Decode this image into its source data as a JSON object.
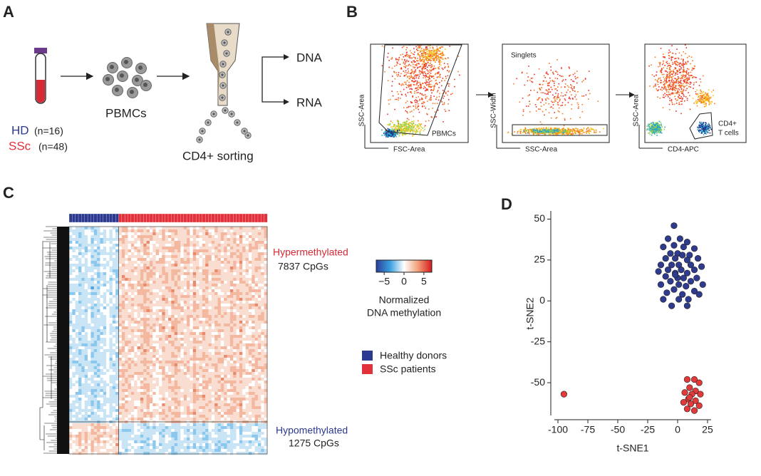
{
  "panels": {
    "A": {
      "label": "A",
      "hd": "HD",
      "hd_n": "(n=16)",
      "ssc": "SSc",
      "ssc_n": "(n=48)",
      "cells": "PBMCs",
      "sorting": "CD4+ sorting",
      "dna": "DNA",
      "rna": "RNA"
    },
    "B": {
      "label": "B",
      "plots": [
        {
          "ylabel": "SSC-Area",
          "xlabel": "FSC-Area",
          "gate": "PBMCs"
        },
        {
          "ylabel": "SSC-Width",
          "xlabel": "SSC-Area",
          "gate": "Singlets"
        },
        {
          "ylabel": "SSC-Area",
          "xlabel": "CD4-APC",
          "gate_lines": [
            "CD4+",
            "T cells"
          ]
        }
      ]
    },
    "C": {
      "label": "C",
      "hyper": "Hypermethylated",
      "hyper_n": "7837 CpGs",
      "hypo": "Hypomethylated",
      "hypo_n": "1275 CpGs",
      "colorbar": {
        "ticks": [
          {
            "value": -5,
            "label": "−5"
          },
          0,
          5
        ],
        "lim": [
          -7,
          7
        ],
        "title_lines": [
          "Normalized",
          "DNA methylation"
        ]
      },
      "legend": [
        {
          "name": "Healthy donors",
          "color": "#2b3990"
        },
        {
          "name": "SSc patients",
          "color": "#e2313a"
        }
      ]
    },
    "D": {
      "label": "D"
    }
  },
  "chart_data": {
    "type": "scatter",
    "xlabel": "t-SNE1",
    "ylabel": "t-SNE2",
    "xlim": [
      -103,
      28
    ],
    "ylim": [
      -70,
      55
    ],
    "xticks": [
      -100,
      -75,
      -50,
      -25,
      0,
      25
    ],
    "yticks": [
      -50,
      -25,
      0,
      25,
      50
    ],
    "series": [
      {
        "color": "#2e3b8e",
        "x": [
          -3,
          -8,
          2,
          8,
          -12,
          -3,
          5,
          14,
          -6,
          0,
          4,
          10,
          -10,
          -2,
          8,
          17,
          -14,
          -5,
          1,
          11,
          20,
          -8,
          3,
          14,
          -16,
          -2,
          8,
          -10,
          0,
          5,
          16,
          -6,
          11,
          21,
          -14,
          1,
          7,
          -3,
          14,
          -9,
          4,
          18,
          -12,
          1,
          9,
          -5,
          8,
          -2
        ],
        "values": [
          46,
          38,
          38,
          36,
          33,
          34,
          33,
          32,
          29,
          29,
          28,
          28,
          26,
          26,
          25,
          26,
          22,
          22,
          22,
          22,
          21,
          19,
          19,
          19,
          18,
          17,
          17,
          15,
          14,
          14,
          14,
          12,
          12,
          10,
          10,
          10,
          9,
          7,
          6,
          5,
          4,
          4,
          1,
          1,
          1,
          -3,
          -3,
          16
        ]
      },
      {
        "color": "#e23a3a",
        "x": [
          -95,
          8,
          14,
          18,
          10,
          15,
          6,
          12,
          19,
          9,
          15,
          5,
          11,
          18,
          8,
          14,
          10
        ],
        "values": [
          -57,
          -48,
          -48,
          -50,
          -53,
          -55,
          -56,
          -57,
          -57,
          -60,
          -61,
          -62,
          -63,
          -64,
          -66,
          -67,
          -59
        ]
      }
    ]
  }
}
